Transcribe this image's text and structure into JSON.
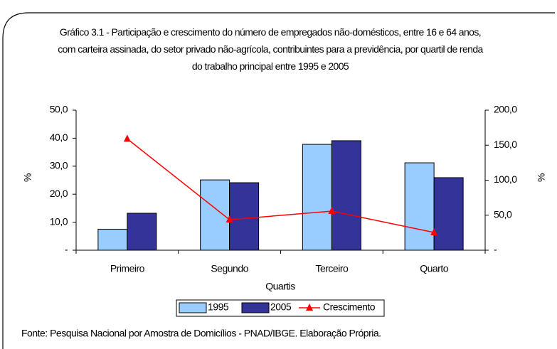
{
  "chart_data": {
    "type": "bar_line",
    "title": "Gráfico 3.1 - Participação e crescimento do número de empregados não-domésticos, entre 16 e 64 anos, com carteira assinada, do setor privado não-agrícola, contribuintes para a previdência, por quartil de renda do trabalho principal entre 1995 e 2005",
    "categories": [
      "Primeiro",
      "Segundo",
      "Terceiro",
      "Quarto"
    ],
    "series": [
      {
        "name": "1995",
        "color": "#99ccff",
        "type": "bar",
        "values": [
          7.5,
          25.1,
          37.8,
          31.2
        ]
      },
      {
        "name": "2005",
        "color": "#333399",
        "type": "bar",
        "values": [
          13.2,
          24.1,
          39.1,
          25.9
        ]
      },
      {
        "name": "Crescimento",
        "color": "#ff0000",
        "type": "line",
        "axis": "y2",
        "values": [
          159,
          43.6,
          55.8,
          25.4
        ]
      }
    ],
    "xlabel": "Quartis",
    "ylabel": "%",
    "y2label": "%",
    "ylim": [
      0,
      50
    ],
    "yticks": [
      {
        "value": 0,
        "label": "-"
      },
      {
        "value": 10,
        "label": "10,0"
      },
      {
        "value": 20,
        "label": "20,0"
      },
      {
        "value": 30,
        "label": "30,0"
      },
      {
        "value": 40,
        "label": "40,0"
      },
      {
        "value": 50,
        "label": "50,0"
      }
    ],
    "y2lim": [
      0,
      200
    ],
    "y2ticks": [
      {
        "value": 0,
        "label": "-"
      },
      {
        "value": 50,
        "label": "50,0"
      },
      {
        "value": 100,
        "label": "100,0"
      },
      {
        "value": 150,
        "label": "150,0"
      },
      {
        "value": 200,
        "label": "200,0"
      }
    ],
    "source": "Fonte: Pesquisa Nacional por Amostra de Domicílios - PNAD/IBGE. Elaboração Própria.",
    "grid": false,
    "legend": "bottom"
  }
}
